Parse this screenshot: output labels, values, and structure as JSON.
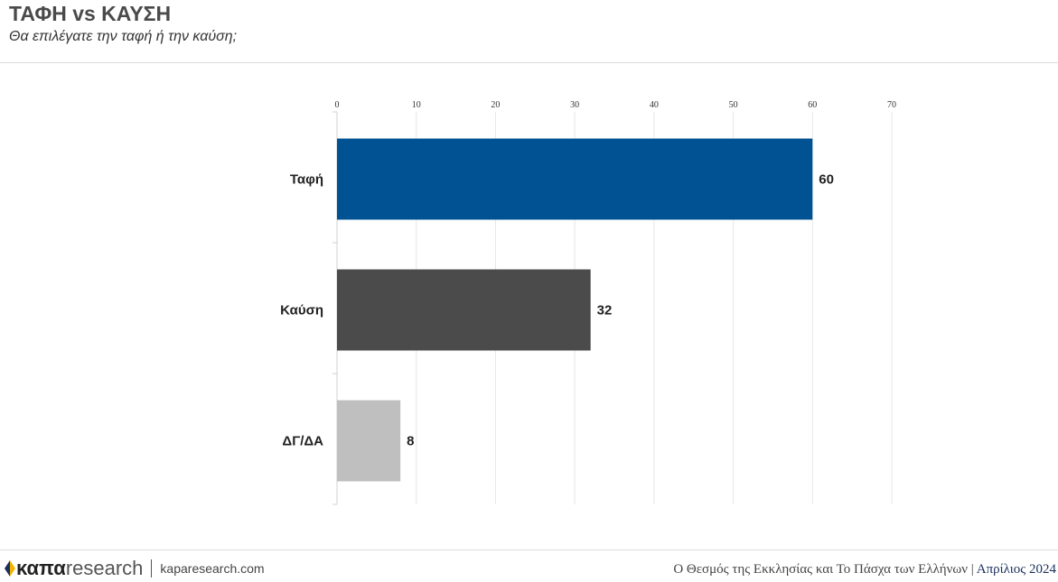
{
  "header": {
    "title": "ΤΑΦΗ vs ΚΑΥΣΗ",
    "subtitle": "Θα επιλέγατε την ταφή ή την καύση;"
  },
  "chart_data": {
    "type": "bar",
    "orientation": "horizontal",
    "categories": [
      "Ταφή",
      "Καύση",
      "ΔΓ/ΔΑ"
    ],
    "values": [
      60,
      32,
      8
    ],
    "colors": [
      "#005292",
      "#4b4b4b",
      "#bfbfbf"
    ],
    "xlim": [
      0,
      70
    ],
    "xticks": [
      0,
      10,
      20,
      30,
      40,
      50,
      60,
      70
    ],
    "tick_position": "top",
    "grid": true,
    "data_labels": true
  },
  "footer": {
    "logo_bold": "καπα",
    "logo_light": "research",
    "site": "kaparesearch.com",
    "report": "Ο Θεσμός της Εκκλησίας και Το Πάσχα των Ελλήνων",
    "separator": "|",
    "date": "Απρίλιος 2024",
    "logo_colors": [
      "#f2b400",
      "#1a2f5c"
    ]
  }
}
